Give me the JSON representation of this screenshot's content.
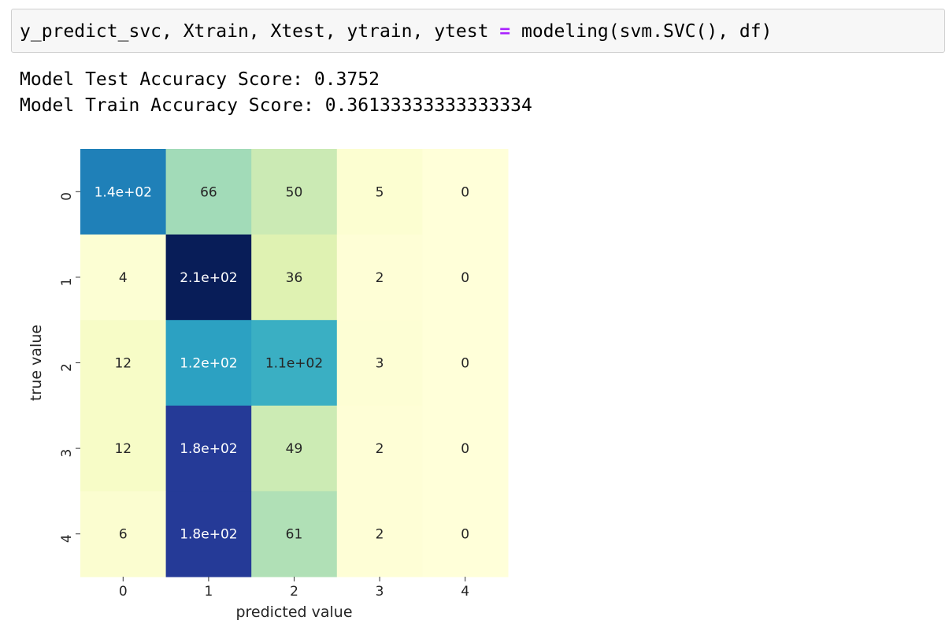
{
  "code_cell": {
    "before_op": "y_predict_svc, Xtrain, Xtest, ytrain, ytest ",
    "operator": "=",
    "after_op": " modeling(svm.SVC(), df)"
  },
  "output": {
    "test_line": "Model Test Accuracy Score: 0.3752",
    "train_line": "Model Train Accuracy Score: 0.36133333333333334"
  },
  "chart_data": {
    "type": "heatmap",
    "colormap": "YlGnBu",
    "colorbar": false,
    "xlabel": "predicted value",
    "ylabel": "true value",
    "x_ticks": [
      "0",
      "1",
      "2",
      "3",
      "4"
    ],
    "y_ticks": [
      "0",
      "1",
      "2",
      "3",
      "4"
    ],
    "values": [
      [
        140,
        66,
        50,
        5,
        0
      ],
      [
        4,
        210,
        36,
        2,
        0
      ],
      [
        12,
        120,
        110,
        3,
        0
      ],
      [
        12,
        180,
        49,
        2,
        0
      ],
      [
        6,
        180,
        61,
        2,
        0
      ]
    ],
    "annotations": [
      [
        "1.4e+02",
        "66",
        "50",
        "5",
        "0"
      ],
      [
        "4",
        "2.1e+02",
        "36",
        "2",
        "0"
      ],
      [
        "12",
        "1.2e+02",
        "1.1e+02",
        "3",
        "0"
      ],
      [
        "12",
        "1.8e+02",
        "49",
        "2",
        "0"
      ],
      [
        "6",
        "1.8e+02",
        "61",
        "2",
        "0"
      ]
    ],
    "value_range": [
      0,
      210
    ]
  }
}
